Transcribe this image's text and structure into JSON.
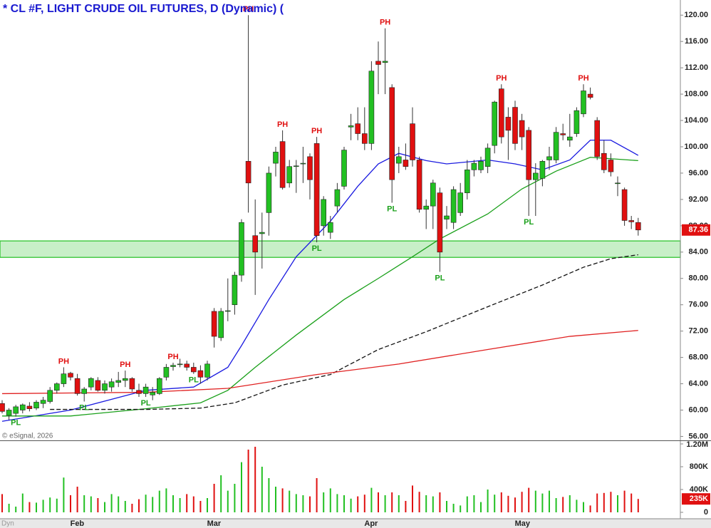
{
  "chart_data": {
    "type": "candlestick",
    "title": "* CL #F, LIGHT CRUDE OIL FUTURES, D (Dynamic) (",
    "watermark": "© eSignal, 2026",
    "corner_label": "Dyn",
    "categories": [
      null,
      null,
      null,
      null,
      null,
      null,
      null,
      null,
      null,
      null,
      null,
      "Feb",
      null,
      null,
      null,
      null,
      null,
      null,
      null,
      null,
      null,
      null,
      null,
      null,
      null,
      null,
      null,
      null,
      null,
      null,
      null,
      "Mar",
      null,
      null,
      null,
      null,
      null,
      null,
      null,
      null,
      null,
      null,
      null,
      null,
      null,
      null,
      null,
      null,
      null,
      null,
      null,
      null,
      null,
      null,
      "Apr",
      null,
      null,
      null,
      null,
      null,
      null,
      null,
      null,
      null,
      null,
      null,
      null,
      null,
      null,
      null,
      null,
      null,
      null,
      null,
      null,
      null,
      "May",
      null,
      null,
      null,
      null,
      null,
      null,
      null,
      null,
      null,
      null,
      null,
      null,
      null,
      null,
      null,
      null,
      null
    ],
    "ohlc": [
      [
        61,
        61.5,
        59.5,
        59.8
      ],
      [
        59.2,
        60.3,
        58.5,
        60
      ],
      [
        59.5,
        60.8,
        59,
        60.5
      ],
      [
        60,
        61,
        59.5,
        60.8
      ],
      [
        60.6,
        61.2,
        59.8,
        60.2
      ],
      [
        60.3,
        61.5,
        60,
        61.2
      ],
      [
        61,
        62,
        60.3,
        61.5
      ],
      [
        61.3,
        63.5,
        61,
        63
      ],
      [
        63,
        64.2,
        62.5,
        64
      ],
      [
        64,
        66.5,
        63.5,
        65.5
      ],
      [
        65.6,
        65.8,
        64.5,
        65
      ],
      [
        64.8,
        65.5,
        62.2,
        62.5
      ],
      [
        62.5,
        63.5,
        61.3,
        63.2
      ],
      [
        63.5,
        65,
        63,
        64.8
      ],
      [
        64.5,
        65,
        62.8,
        63
      ],
      [
        63,
        64.5,
        62.5,
        64
      ],
      [
        63.5,
        64.8,
        62.8,
        64.3
      ],
      [
        64.2,
        65.8,
        63.5,
        64.5
      ],
      [
        64.5,
        66,
        63.5,
        64.8
      ],
      [
        64.8,
        65,
        62.8,
        63.2
      ],
      [
        63,
        64,
        62,
        62.5
      ],
      [
        62.5,
        64,
        62,
        63.5
      ],
      [
        62.3,
        63.5,
        61.5,
        62.7
      ],
      [
        62.5,
        65,
        62.3,
        64.8
      ],
      [
        65,
        67,
        64.5,
        66.5
      ],
      [
        66.6,
        67.2,
        66,
        66.8
      ],
      [
        67,
        67.8,
        66.5,
        67
      ],
      [
        67,
        67.5,
        66,
        66.5
      ],
      [
        66.5,
        67.2,
        65.5,
        65.8
      ],
      [
        66,
        66.8,
        64,
        65
      ],
      [
        65,
        67.5,
        64.5,
        67
      ],
      [
        75,
        75.5,
        69.5,
        71.2
      ],
      [
        71,
        75.5,
        70.5,
        75
      ],
      [
        75,
        80,
        73.5,
        75.1
      ],
      [
        76,
        81,
        74.5,
        80.5
      ],
      [
        80.5,
        89,
        79.5,
        88.5
      ],
      [
        97.8,
        120,
        90,
        94.5
      ],
      [
        86.5,
        92,
        77.5,
        84
      ],
      [
        86.8,
        90,
        81.5,
        87
      ],
      [
        90,
        97,
        86.5,
        96
      ],
      [
        97.5,
        100,
        95.5,
        99.2
      ],
      [
        100.8,
        102.5,
        93.5,
        93.8
      ],
      [
        94.5,
        98,
        93.8,
        97
      ],
      [
        97,
        98,
        93,
        97.1
      ],
      [
        97.5,
        100,
        94.5,
        97.5
      ],
      [
        98.5,
        99,
        92,
        95
      ],
      [
        100.5,
        101.5,
        85.5,
        86.5
      ],
      [
        88,
        92.5,
        86.5,
        92
      ],
      [
        87,
        89.5,
        86,
        88.5
      ],
      [
        91,
        94.5,
        90,
        93.5
      ],
      [
        94,
        100,
        93.5,
        99.5
      ],
      [
        103,
        105,
        101,
        103.2
      ],
      [
        103.5,
        106,
        101,
        102
      ],
      [
        102,
        106,
        99.5,
        100.5
      ],
      [
        100.5,
        113,
        99.5,
        111.5
      ],
      [
        113,
        116,
        108,
        112.5
      ],
      [
        112.8,
        118,
        108,
        113
      ],
      [
        109,
        109.5,
        91.5,
        95
      ],
      [
        97.5,
        100,
        96,
        98.5
      ],
      [
        98,
        100.5,
        96.5,
        97
      ],
      [
        103.5,
        106,
        97,
        98
      ],
      [
        98,
        98.5,
        90,
        90.5
      ],
      [
        90.5,
        92,
        87.5,
        91
      ],
      [
        91,
        95,
        87.5,
        94.5
      ],
      [
        93,
        93.8,
        81,
        84
      ],
      [
        89,
        91,
        87.5,
        89.5
      ],
      [
        88.5,
        94,
        87.5,
        93.5
      ],
      [
        90,
        94.5,
        89.5,
        93
      ],
      [
        93,
        98,
        92,
        96.5
      ],
      [
        96.5,
        98,
        95.5,
        97.5
      ],
      [
        96.5,
        98.5,
        96,
        97.8
      ],
      [
        97,
        100.5,
        96,
        99.8
      ],
      [
        100.2,
        107,
        99,
        106.8
      ],
      [
        108.8,
        109.5,
        100.5,
        101.5
      ],
      [
        104.5,
        106,
        98,
        102.5
      ],
      [
        106,
        107,
        99.5,
        100.5
      ],
      [
        104,
        105,
        99.5,
        101.5
      ],
      [
        102.5,
        103,
        89.5,
        95
      ],
      [
        95,
        97.5,
        89.5,
        96
      ],
      [
        95.2,
        98,
        94,
        97.8
      ],
      [
        98,
        100,
        96.5,
        98.5
      ],
      [
        98,
        103,
        97.5,
        102.2
      ],
      [
        102,
        103.5,
        101,
        101.8
      ],
      [
        101,
        105,
        100,
        101.5
      ],
      [
        102,
        106,
        101.5,
        105.5
      ],
      [
        105,
        109.5,
        104.5,
        108.5
      ],
      [
        108,
        109,
        107.2,
        107.5
      ],
      [
        104,
        104.5,
        98,
        98.5
      ],
      [
        99,
        101,
        96,
        96.5
      ],
      [
        98,
        99,
        95.5,
        96.2
      ],
      [
        94.5,
        95.5,
        92.5,
        94.5
      ],
      [
        93.5,
        93.8,
        88,
        88.8
      ],
      [
        88.8,
        89.5,
        87.5,
        88.6
      ],
      [
        88.5,
        89.2,
        86.5,
        87.36
      ]
    ],
    "up_color": "#22c022",
    "down_color": "#e01010",
    "volume": [
      320000,
      150000,
      100000,
      330000,
      180000,
      170000,
      220000,
      260000,
      240000,
      610000,
      300000,
      450000,
      300000,
      280000,
      250000,
      180000,
      320000,
      280000,
      200000,
      150000,
      230000,
      310000,
      270000,
      380000,
      420000,
      300000,
      250000,
      320000,
      280000,
      200000,
      250000,
      500000,
      650000,
      380000,
      500000,
      880000,
      1100000,
      1150000,
      800000,
      600000,
      450000,
      420000,
      380000,
      320000,
      300000,
      280000,
      600000,
      350000,
      420000,
      320000,
      300000,
      240000,
      280000,
      310000,
      430000,
      350000,
      300000,
      350000,
      300000,
      200000,
      470000,
      360000,
      300000,
      280000,
      350000,
      200000,
      150000,
      120000,
      280000,
      300000,
      180000,
      400000,
      310000,
      350000,
      290000,
      260000,
      360000,
      430000,
      380000,
      330000,
      380000,
      250000,
      270000,
      300000,
      220000,
      180000,
      120000,
      330000,
      340000,
      360000,
      300000,
      380000,
      330000,
      235000
    ],
    "ylim": [
      55.4,
      122.3
    ],
    "yticks": [
      {
        "value": 56,
        "label": "56.00"
      },
      {
        "value": 60,
        "label": "60.00"
      },
      {
        "value": 64,
        "label": "64.00"
      },
      {
        "value": 68,
        "label": "68.00"
      },
      {
        "value": 72,
        "label": "72.00"
      },
      {
        "value": 76,
        "label": "76.00"
      },
      {
        "value": 80,
        "label": "80.00"
      },
      {
        "value": 84,
        "label": "84.00"
      },
      {
        "value": 88,
        "label": "88.00"
      },
      {
        "value": 92,
        "label": "92.00"
      },
      {
        "value": 96,
        "label": "96.00"
      },
      {
        "value": 100,
        "label": "100.00"
      },
      {
        "value": 104,
        "label": "104.00"
      },
      {
        "value": 108,
        "label": "108.00"
      },
      {
        "value": 112,
        "label": "112.00"
      },
      {
        "value": 116,
        "label": "116.00"
      },
      {
        "value": 120,
        "label": "120.00"
      }
    ],
    "vol_ylim": [
      0,
      1200000
    ],
    "vol_ticks": [
      0,
      {
        "value": 400000,
        "label": "400K"
      },
      {
        "value": 800000,
        "label": "800K"
      },
      {
        "value": 1200000,
        "label": "1.20M"
      }
    ],
    "last_price": {
      "value": 87.36,
      "label": "87.36",
      "color": "#e01010"
    },
    "last_volume": {
      "value": 235000,
      "label": "235K",
      "color": "#e01010"
    },
    "zone": {
      "values": [
        83.2,
        85.7
      ],
      "color": "#22c022"
    },
    "lines": [
      {
        "color": "#1a1ae0",
        "dash": false,
        "x": [
          0,
          10,
          21,
          28,
          33,
          35,
          39,
          43,
          48,
          52,
          55,
          58,
          62,
          65,
          71,
          75,
          79,
          83,
          86,
          89,
          93
        ],
        "values": [
          58.3,
          60,
          63,
          63.5,
          66.5,
          69.8,
          76.8,
          83.3,
          88.7,
          94,
          97.4,
          99,
          97.9,
          97.4,
          98,
          97.4,
          96.5,
          98,
          101,
          101,
          98.7
        ]
      },
      {
        "color": "#1aa01a",
        "dash": false,
        "x": [
          0,
          10,
          21,
          29,
          33,
          37,
          43,
          50,
          55,
          60,
          64,
          71,
          76,
          81,
          86,
          93
        ],
        "values": [
          59.1,
          59.1,
          60.2,
          61.1,
          63,
          66.5,
          71.4,
          76.8,
          80,
          83.3,
          86,
          89.8,
          93.6,
          96.3,
          98.4,
          97.9
        ]
      },
      {
        "color": "#111111",
        "dash": true,
        "x": [
          7,
          21,
          29,
          34,
          41,
          48,
          55,
          62,
          71,
          79,
          85,
          89,
          93
        ],
        "values": [
          60.1,
          60.1,
          60.3,
          61.1,
          63.8,
          65.4,
          69.2,
          71.9,
          75.7,
          79,
          81.7,
          83,
          83.6
        ]
      },
      {
        "color": "#e02020",
        "dash": false,
        "x": [
          0,
          21,
          33,
          46,
          58,
          71,
          83,
          93
        ],
        "values": [
          62.5,
          62.7,
          63.3,
          65.4,
          67,
          69.2,
          71.2,
          72.1
        ]
      }
    ],
    "pivots": [
      {
        "label": "PH",
        "index": 9,
        "value": 66.5,
        "color": "#e01010"
      },
      {
        "label": "PL",
        "index": 2,
        "value": 59,
        "color": "#1aa01a"
      },
      {
        "label": "PL",
        "index": 12,
        "value": 61.3,
        "color": "#1aa01a"
      },
      {
        "label": "PH",
        "index": 18,
        "value": 66,
        "color": "#e01010"
      },
      {
        "label": "PL",
        "index": 21,
        "value": 62,
        "color": "#1aa01a"
      },
      {
        "label": "PH",
        "index": 25,
        "value": 67.2,
        "color": "#e01010"
      },
      {
        "label": "PL",
        "index": 28,
        "value": 65.5,
        "color": "#1aa01a"
      },
      {
        "label": "PH",
        "index": 36,
        "value": 120,
        "color": "#e01010"
      },
      {
        "label": "PH",
        "index": 41,
        "value": 102.5,
        "color": "#e01010"
      },
      {
        "label": "PH",
        "index": 46,
        "value": 101.5,
        "color": "#e01010"
      },
      {
        "label": "PL",
        "index": 46,
        "value": 85.5,
        "color": "#1aa01a"
      },
      {
        "label": "PH",
        "index": 56,
        "value": 118,
        "color": "#e01010"
      },
      {
        "label": "PL",
        "index": 57,
        "value": 91.5,
        "color": "#1aa01a"
      },
      {
        "label": "PL",
        "index": 64,
        "value": 81,
        "color": "#1aa01a"
      },
      {
        "label": "PH",
        "index": 73,
        "value": 109.5,
        "color": "#e01010"
      },
      {
        "label": "PL",
        "index": 77,
        "value": 89.5,
        "color": "#1aa01a"
      },
      {
        "label": "PH",
        "index": 85,
        "value": 109.5,
        "color": "#e01010"
      }
    ]
  }
}
